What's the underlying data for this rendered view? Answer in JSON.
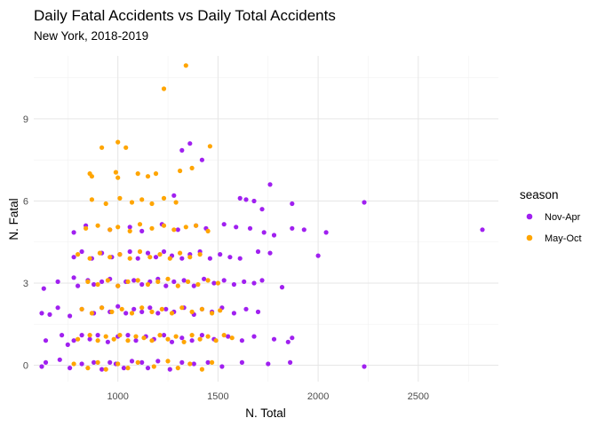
{
  "chart_data": {
    "type": "scatter",
    "title": "Daily Fatal Accidents vs Daily Total Accidents",
    "subtitle": "New York, 2018-2019",
    "xlabel": "N. Total",
    "ylabel": "N. Fatal",
    "xlim": [
      580,
      2900
    ],
    "ylim": [
      -0.6,
      11.3
    ],
    "xticks": [
      1000,
      1500,
      2000,
      2500
    ],
    "yticks": [
      0,
      3,
      6,
      9
    ],
    "grid": true,
    "legend": {
      "title": "season",
      "position": "right"
    },
    "series": [
      {
        "name": "Nov-Apr",
        "color": "#A020F0",
        "points": [
          [
            620,
            -0.05
          ],
          [
            640,
            0.1
          ],
          [
            710,
            0.2
          ],
          [
            760,
            -0.1
          ],
          [
            820,
            0.05
          ],
          [
            880,
            0.1
          ],
          [
            920,
            -0.15
          ],
          [
            960,
            0.1
          ],
          [
            990,
            0.05
          ],
          [
            1030,
            -0.1
          ],
          [
            1070,
            0.15
          ],
          [
            1120,
            0.1
          ],
          [
            1150,
            -0.1
          ],
          [
            1200,
            0.15
          ],
          [
            1260,
            -0.15
          ],
          [
            1320,
            0.1
          ],
          [
            1380,
            0.05
          ],
          [
            1450,
            0.1
          ],
          [
            1520,
            -0.05
          ],
          [
            1620,
            0.1
          ],
          [
            1750,
            0.05
          ],
          [
            1860,
            0.1
          ],
          [
            2230,
            -0.05
          ],
          [
            640,
            0.9
          ],
          [
            720,
            1.1
          ],
          [
            750,
            0.75
          ],
          [
            780,
            0.9
          ],
          [
            820,
            1.1
          ],
          [
            860,
            0.95
          ],
          [
            900,
            1.1
          ],
          [
            950,
            0.85
          ],
          [
            1000,
            1.05
          ],
          [
            1050,
            1.1
          ],
          [
            1090,
            0.9
          ],
          [
            1140,
            1.05
          ],
          [
            1180,
            0.95
          ],
          [
            1230,
            1.1
          ],
          [
            1270,
            0.85
          ],
          [
            1320,
            1.0
          ],
          [
            1370,
            0.9
          ],
          [
            1420,
            1.1
          ],
          [
            1480,
            0.95
          ],
          [
            1550,
            1.05
          ],
          [
            1620,
            0.9
          ],
          [
            1680,
            1.05
          ],
          [
            1780,
            0.95
          ],
          [
            1850,
            0.85
          ],
          [
            1870,
            1.0
          ],
          [
            620,
            1.9
          ],
          [
            660,
            1.85
          ],
          [
            700,
            2.1
          ],
          [
            760,
            1.8
          ],
          [
            820,
            2.05
          ],
          [
            880,
            1.9
          ],
          [
            920,
            2.1
          ],
          [
            960,
            1.95
          ],
          [
            1000,
            2.15
          ],
          [
            1040,
            1.9
          ],
          [
            1080,
            2.05
          ],
          [
            1120,
            1.95
          ],
          [
            1160,
            2.1
          ],
          [
            1200,
            1.9
          ],
          [
            1240,
            2.05
          ],
          [
            1280,
            1.95
          ],
          [
            1330,
            2.1
          ],
          [
            1380,
            1.85
          ],
          [
            1420,
            2.05
          ],
          [
            1470,
            1.95
          ],
          [
            1520,
            2.1
          ],
          [
            1580,
            1.9
          ],
          [
            1640,
            2.05
          ],
          [
            1700,
            1.95
          ],
          [
            630,
            2.8
          ],
          [
            700,
            3.05
          ],
          [
            780,
            3.2
          ],
          [
            800,
            2.9
          ],
          [
            850,
            3.1
          ],
          [
            880,
            2.95
          ],
          [
            920,
            3.05
          ],
          [
            960,
            3.15
          ],
          [
            1000,
            2.9
          ],
          [
            1040,
            3.05
          ],
          [
            1080,
            3.1
          ],
          [
            1120,
            2.95
          ],
          [
            1160,
            3.05
          ],
          [
            1200,
            3.15
          ],
          [
            1240,
            2.9
          ],
          [
            1280,
            3.05
          ],
          [
            1330,
            3.1
          ],
          [
            1380,
            2.9
          ],
          [
            1430,
            3.15
          ],
          [
            1480,
            3.0
          ],
          [
            1530,
            3.1
          ],
          [
            1580,
            2.95
          ],
          [
            1630,
            3.05
          ],
          [
            1680,
            3.0
          ],
          [
            1720,
            3.1
          ],
          [
            1820,
            2.85
          ],
          [
            780,
            3.95
          ],
          [
            820,
            4.15
          ],
          [
            870,
            3.9
          ],
          [
            920,
            4.1
          ],
          [
            970,
            3.95
          ],
          [
            1010,
            4.05
          ],
          [
            1060,
            4.15
          ],
          [
            1100,
            3.9
          ],
          [
            1150,
            4.1
          ],
          [
            1190,
            3.95
          ],
          [
            1230,
            4.15
          ],
          [
            1270,
            4.0
          ],
          [
            1320,
            3.9
          ],
          [
            1360,
            4.05
          ],
          [
            1410,
            4.15
          ],
          [
            1460,
            3.9
          ],
          [
            1510,
            4.05
          ],
          [
            1560,
            3.95
          ],
          [
            1610,
            3.9
          ],
          [
            1700,
            4.15
          ],
          [
            1760,
            4.1
          ],
          [
            780,
            4.85
          ],
          [
            840,
            5.1
          ],
          [
            960,
            4.95
          ],
          [
            1060,
            5.05
          ],
          [
            1120,
            4.9
          ],
          [
            1220,
            5.15
          ],
          [
            1300,
            4.95
          ],
          [
            1390,
            5.1
          ],
          [
            1440,
            5.0
          ],
          [
            1530,
            5.15
          ],
          [
            1590,
            5.05
          ],
          [
            1660,
            5.0
          ],
          [
            1730,
            4.85
          ],
          [
            1780,
            4.75
          ],
          [
            1870,
            5.0
          ],
          [
            1930,
            4.95
          ],
          [
            2040,
            4.85
          ],
          [
            2820,
            4.95
          ],
          [
            1280,
            6.2
          ],
          [
            1610,
            6.1
          ],
          [
            1640,
            6.05
          ],
          [
            1680,
            6.0
          ],
          [
            1720,
            5.7
          ],
          [
            1870,
            5.9
          ],
          [
            2230,
            5.95
          ],
          [
            1320,
            7.85
          ],
          [
            1360,
            8.1
          ],
          [
            1420,
            7.5
          ],
          [
            1760,
            6.6
          ],
          [
            2000,
            4.0
          ]
        ]
      },
      {
        "name": "May-Oct",
        "color": "#FFA500",
        "points": [
          [
            780,
            0.05
          ],
          [
            850,
            -0.1
          ],
          [
            900,
            0.1
          ],
          [
            940,
            -0.15
          ],
          [
            1000,
            0.05
          ],
          [
            1050,
            -0.1
          ],
          [
            1100,
            0.1
          ],
          [
            1180,
            -0.05
          ],
          [
            1250,
            0.15
          ],
          [
            1300,
            -0.1
          ],
          [
            1360,
            0.05
          ],
          [
            1420,
            -0.15
          ],
          [
            1470,
            0.1
          ],
          [
            800,
            0.95
          ],
          [
            860,
            1.1
          ],
          [
            900,
            0.9
          ],
          [
            940,
            1.05
          ],
          [
            980,
            0.95
          ],
          [
            1010,
            1.1
          ],
          [
            1050,
            0.9
          ],
          [
            1090,
            1.05
          ],
          [
            1130,
            1.0
          ],
          [
            1170,
            0.9
          ],
          [
            1210,
            1.1
          ],
          [
            1250,
            0.95
          ],
          [
            1290,
            1.05
          ],
          [
            1330,
            0.85
          ],
          [
            1370,
            1.1
          ],
          [
            1410,
            0.95
          ],
          [
            1450,
            1.05
          ],
          [
            1490,
            0.9
          ],
          [
            1530,
            1.1
          ],
          [
            1570,
            1.0
          ],
          [
            820,
            2.05
          ],
          [
            870,
            1.9
          ],
          [
            920,
            2.1
          ],
          [
            970,
            1.95
          ],
          [
            1020,
            2.05
          ],
          [
            1070,
            1.9
          ],
          [
            1120,
            2.1
          ],
          [
            1170,
            1.95
          ],
          [
            1220,
            2.05
          ],
          [
            1270,
            1.9
          ],
          [
            1320,
            2.1
          ],
          [
            1370,
            1.95
          ],
          [
            1420,
            2.05
          ],
          [
            1470,
            1.9
          ],
          [
            1510,
            2.0
          ],
          [
            850,
            3.05
          ],
          [
            900,
            2.95
          ],
          [
            950,
            3.1
          ],
          [
            1000,
            2.9
          ],
          [
            1050,
            3.05
          ],
          [
            1100,
            3.1
          ],
          [
            1150,
            2.95
          ],
          [
            1200,
            3.05
          ],
          [
            1250,
            3.15
          ],
          [
            1300,
            2.9
          ],
          [
            1350,
            3.05
          ],
          [
            1400,
            2.95
          ],
          [
            1450,
            3.1
          ],
          [
            1500,
            3.0
          ],
          [
            800,
            4.05
          ],
          [
            860,
            3.9
          ],
          [
            910,
            4.1
          ],
          [
            960,
            3.95
          ],
          [
            1010,
            4.05
          ],
          [
            1060,
            3.9
          ],
          [
            1110,
            4.15
          ],
          [
            1160,
            3.95
          ],
          [
            1210,
            4.05
          ],
          [
            1260,
            3.9
          ],
          [
            1310,
            4.1
          ],
          [
            1360,
            3.95
          ],
          [
            1410,
            4.05
          ],
          [
            840,
            5.0
          ],
          [
            900,
            5.1
          ],
          [
            960,
            4.95
          ],
          [
            1000,
            5.05
          ],
          [
            1060,
            4.9
          ],
          [
            1110,
            5.15
          ],
          [
            1170,
            5.0
          ],
          [
            1230,
            5.1
          ],
          [
            1280,
            4.95
          ],
          [
            1340,
            5.05
          ],
          [
            1390,
            5.1
          ],
          [
            1450,
            4.9
          ],
          [
            870,
            6.05
          ],
          [
            940,
            5.9
          ],
          [
            1010,
            6.1
          ],
          [
            1070,
            5.95
          ],
          [
            1120,
            6.05
          ],
          [
            1170,
            5.9
          ],
          [
            1230,
            6.1
          ],
          [
            1290,
            5.95
          ],
          [
            860,
            7.0
          ],
          [
            870,
            6.9
          ],
          [
            990,
            7.05
          ],
          [
            1000,
            6.85
          ],
          [
            1100,
            7.0
          ],
          [
            1150,
            6.9
          ],
          [
            1190,
            7.0
          ],
          [
            1310,
            7.1
          ],
          [
            1370,
            7.2
          ],
          [
            920,
            7.95
          ],
          [
            1000,
            8.15
          ],
          [
            1040,
            7.95
          ],
          [
            1460,
            8.0
          ],
          [
            1230,
            10.1
          ],
          [
            1340,
            10.95
          ]
        ]
      }
    ]
  }
}
